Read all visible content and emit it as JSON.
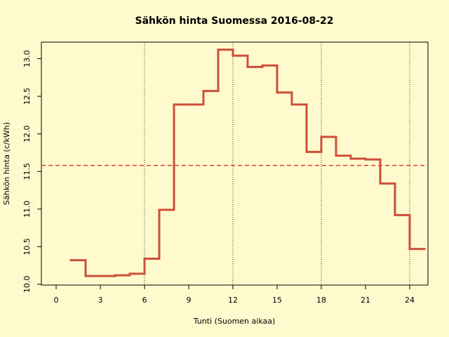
{
  "chart_data": {
    "type": "step",
    "title": "Sähkön hinta Suomessa 2016-08-22",
    "x_label": "Tunti (Suomen aikaa)",
    "y_label": "Sähkön hinta (c/kWh)",
    "x": [
      1,
      2,
      3,
      4,
      5,
      6,
      7,
      8,
      9,
      10,
      11,
      12,
      13,
      14,
      15,
      16,
      17,
      18,
      19,
      20,
      21,
      22,
      23,
      24
    ],
    "series": [
      {
        "color": "#cd4f39",
        "values": [
          10.32,
          10.11,
          10.11,
          10.12,
          10.14,
          10.34,
          10.99,
          12.39,
          12.39,
          12.57,
          13.12,
          13.04,
          12.89,
          12.91,
          12.55,
          12.39,
          11.76,
          11.96,
          11.71,
          11.67,
          11.66,
          11.34,
          10.92,
          10.47
        ]
      }
    ],
    "mean_line": {
      "value": 11.58,
      "color": "#d04040"
    },
    "vlines": [
      6,
      12,
      18,
      24
    ],
    "xlim": [
      -1,
      25.24
    ],
    "ylim": [
      9.99,
      13.22
    ],
    "xticks": [
      0,
      3,
      6,
      9,
      12,
      15,
      18,
      21,
      24
    ],
    "yticks": [
      {
        "value": 10,
        "label": "10.0"
      },
      10.5,
      {
        "value": 11,
        "label": "11.0"
      },
      11.5,
      {
        "value": 12,
        "label": "12.0"
      },
      12.5,
      {
        "value": 13,
        "label": "13.0"
      }
    ]
  }
}
